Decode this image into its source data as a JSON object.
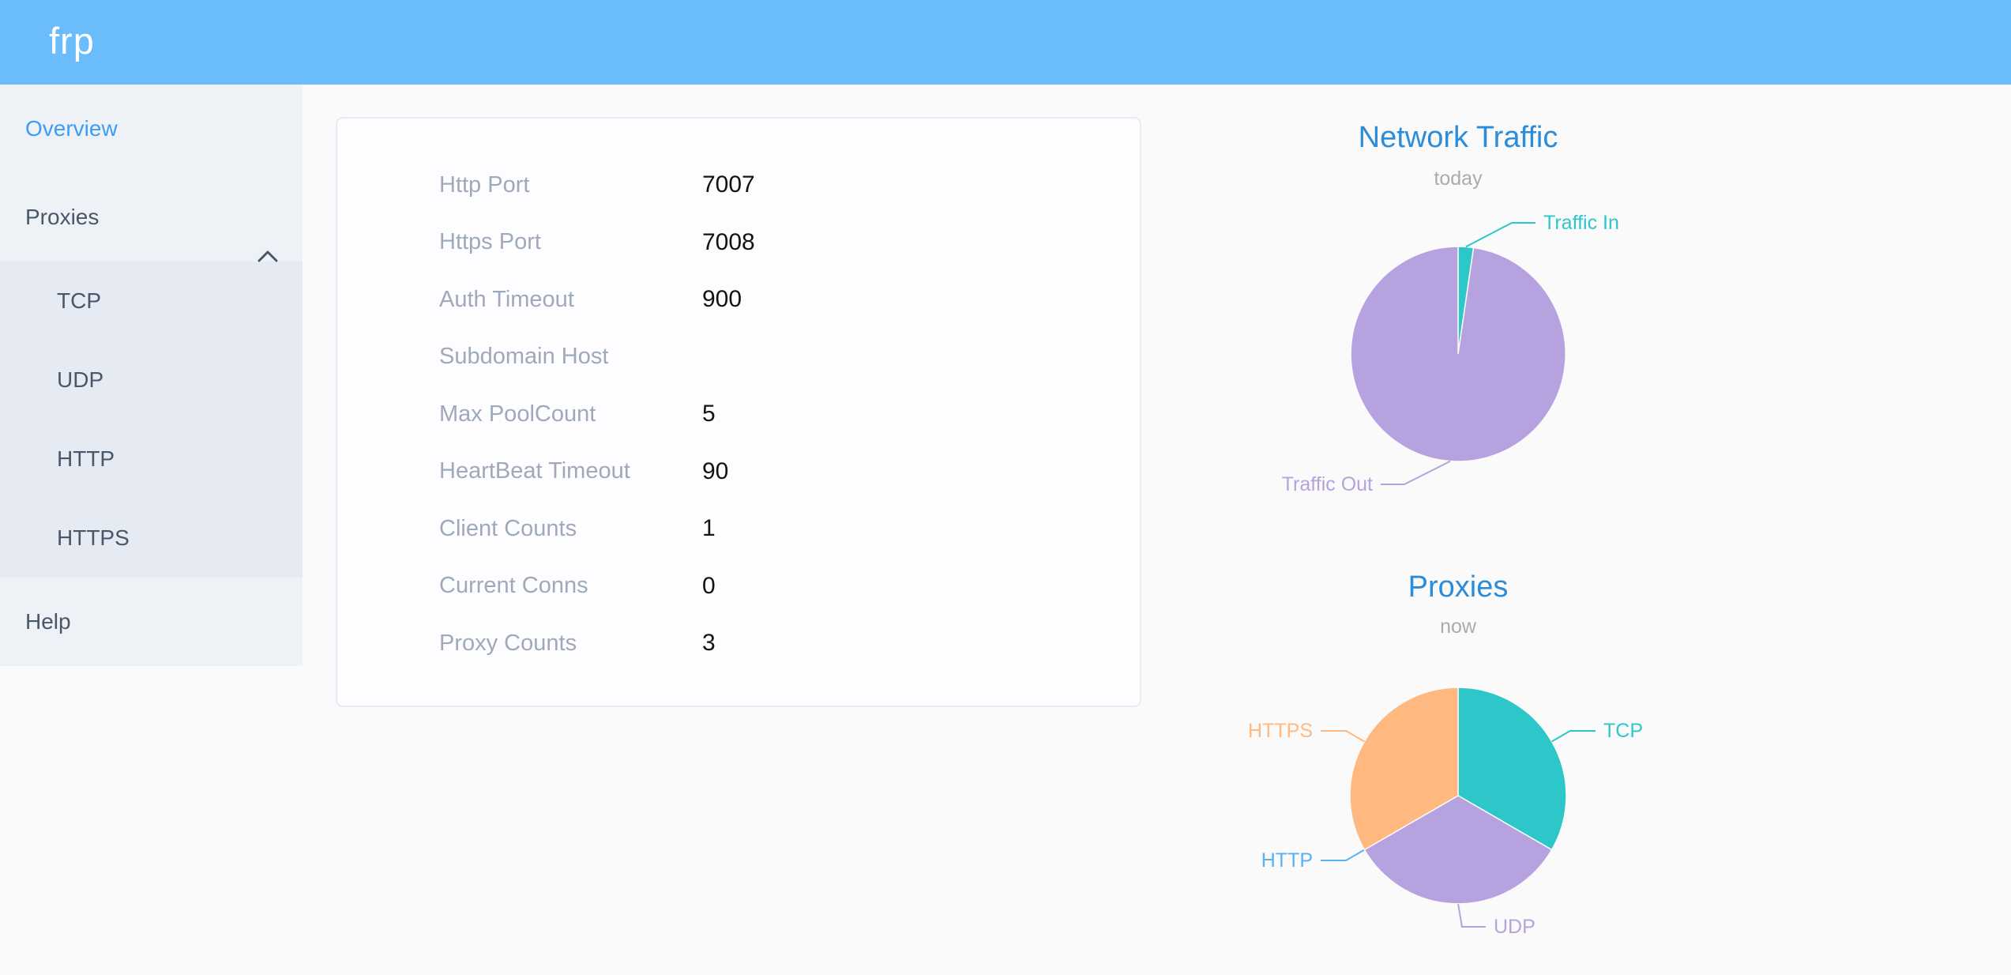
{
  "app": {
    "logo_text": "frp"
  },
  "sidebar": {
    "items": [
      {
        "label": "Overview",
        "active": true
      },
      {
        "label": "Proxies",
        "expanded": true,
        "children": [
          "TCP",
          "UDP",
          "HTTP",
          "HTTPS"
        ]
      },
      {
        "label": "Help"
      }
    ]
  },
  "overview_table": {
    "rows": [
      {
        "label": "Http Port",
        "value": "7007"
      },
      {
        "label": "Https Port",
        "value": "7008"
      },
      {
        "label": "Auth Timeout",
        "value": "900"
      },
      {
        "label": "Subdomain Host",
        "value": ""
      },
      {
        "label": "Max PoolCount",
        "value": "5"
      },
      {
        "label": "HeartBeat Timeout",
        "value": "90"
      },
      {
        "label": "Client Counts",
        "value": "1"
      },
      {
        "label": "Current Conns",
        "value": "0"
      },
      {
        "label": "Proxy Counts",
        "value": "3"
      }
    ]
  },
  "colors": {
    "header": "#6bbcfa",
    "sidebar_active": "#3d9df6",
    "sidebar_text": "#48576a",
    "chart_title": "#2b8dd9",
    "teal": "#2ec7c9",
    "purple": "#b6a2de",
    "blue": "#5ab1ef",
    "orange": "#ffb980"
  },
  "chart_data": [
    {
      "type": "pie",
      "title": "Network Traffic",
      "subtitle": "today",
      "legend_position": "none",
      "label_style": "outside-leader-lines",
      "slices": [
        {
          "name": "Traffic In",
          "value": 2.3,
          "color": "#2ec7c9"
        },
        {
          "name": "Traffic Out",
          "value": 97.7,
          "color": "#b6a2de"
        }
      ]
    },
    {
      "type": "pie",
      "title": "Proxies",
      "subtitle": "now",
      "legend_position": "none",
      "label_style": "outside-leader-lines",
      "slices": [
        {
          "name": "TCP",
          "value": 1,
          "color": "#2ec7c9"
        },
        {
          "name": "UDP",
          "value": 1,
          "color": "#b6a2de"
        },
        {
          "name": "HTTP",
          "value": 0,
          "color": "#5ab1ef"
        },
        {
          "name": "HTTPS",
          "value": 1,
          "color": "#ffb980"
        }
      ]
    }
  ]
}
